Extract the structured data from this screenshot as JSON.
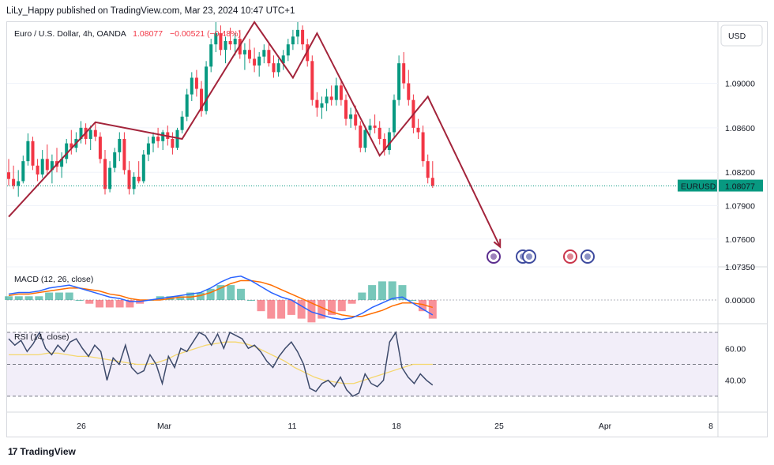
{
  "publisher_line": "LiLy_Happy published on TradingView.com, Mar 23, 2024 10:47 UTC+1",
  "footer_brand": "TradingView",
  "footer_logo": "17",
  "currency_button": "USD",
  "colors": {
    "up": "#089981",
    "down": "#f23645",
    "macd": "#2962ff",
    "signal": "#ff6d00",
    "rsi": "#3d4a6b",
    "rsi_ma": "#f5d76e",
    "trend": "#a3243b"
  },
  "chart_data": [
    {
      "type": "candlestick",
      "symbol_label": "EURUSD",
      "legend": {
        "name": "Euro / U.S. Dollar, 4h, OANDA",
        "last": "1.08077",
        "change": "−0.00521 (−0.48%)"
      },
      "last_price": 1.08077,
      "last_price_label": "1.08077",
      "y_ticks": [
        "1.09000",
        "1.08600",
        "1.08200",
        "1.07900",
        "1.07600",
        "1.07350"
      ],
      "y_tick_values": [
        1.09,
        1.086,
        1.082,
        1.079,
        1.076,
        1.0735
      ],
      "ylim": [
        1.0735,
        1.0955
      ],
      "x_ticks": [
        "26",
        "Mar",
        "11",
        "18",
        "25",
        "Apr",
        "8"
      ],
      "trend_path": [
        [
          0,
          1.078
        ],
        [
          18,
          1.0865
        ],
        [
          36,
          1.085
        ],
        [
          51,
          1.0955
        ],
        [
          59,
          1.0905
        ],
        [
          64,
          1.0945
        ],
        [
          77,
          1.0835
        ],
        [
          87,
          1.0888
        ],
        [
          102,
          1.0753
        ]
      ],
      "ohlc": [
        [
          1.082,
          1.0832,
          1.0808,
          1.0814
        ],
        [
          1.0814,
          1.0826,
          1.0805,
          1.0808
        ],
        [
          1.0808,
          1.0822,
          1.0798,
          1.0812
        ],
        [
          1.0812,
          1.0835,
          1.081,
          1.083
        ],
        [
          1.083,
          1.0855,
          1.0826,
          1.0848
        ],
        [
          1.0848,
          1.0852,
          1.0822,
          1.0826
        ],
        [
          1.0826,
          1.0832,
          1.0812,
          1.0818
        ],
        [
          1.0818,
          1.084,
          1.0815,
          1.0832
        ],
        [
          1.0832,
          1.0845,
          1.0818,
          1.0822
        ],
        [
          1.0822,
          1.0836,
          1.081,
          1.083
        ],
        [
          1.083,
          1.0842,
          1.082,
          1.0825
        ],
        [
          1.0825,
          1.0838,
          1.0815,
          1.0832
        ],
        [
          1.0832,
          1.085,
          1.0828,
          1.0846
        ],
        [
          1.0846,
          1.0858,
          1.0836,
          1.0842
        ],
        [
          1.0842,
          1.0856,
          1.0838,
          1.085
        ],
        [
          1.085,
          1.0866,
          1.0846,
          1.086
        ],
        [
          1.086,
          1.0864,
          1.0845,
          1.085
        ],
        [
          1.085,
          1.0862,
          1.084,
          1.0858
        ],
        [
          1.0858,
          1.0865,
          1.0848,
          1.0852
        ],
        [
          1.0852,
          1.0856,
          1.0828,
          1.0832
        ],
        [
          1.0832,
          1.084,
          1.08,
          1.0805
        ],
        [
          1.0805,
          1.083,
          1.0802,
          1.0824
        ],
        [
          1.0824,
          1.0842,
          1.082,
          1.0838
        ],
        [
          1.0838,
          1.0856,
          1.083,
          1.085
        ],
        [
          1.085,
          1.0856,
          1.0818,
          1.0822
        ],
        [
          1.0822,
          1.083,
          1.08,
          1.0805
        ],
        [
          1.0805,
          1.082,
          1.08,
          1.0816
        ],
        [
          1.0816,
          1.083,
          1.081,
          1.0812
        ],
        [
          1.0812,
          1.084,
          1.081,
          1.0836
        ],
        [
          1.0836,
          1.0852,
          1.083,
          1.0846
        ],
        [
          1.0846,
          1.0856,
          1.0838,
          1.0852
        ],
        [
          1.0852,
          1.086,
          1.0842,
          1.0848
        ],
        [
          1.0848,
          1.0858,
          1.084,
          1.0856
        ],
        [
          1.0856,
          1.0862,
          1.0844,
          1.085
        ],
        [
          1.085,
          1.0856,
          1.0836,
          1.0842
        ],
        [
          1.0842,
          1.086,
          1.084,
          1.0858
        ],
        [
          1.0858,
          1.0875,
          1.0855,
          1.087
        ],
        [
          1.087,
          1.0895,
          1.0866,
          1.089
        ],
        [
          1.089,
          1.091,
          1.0884,
          1.0905
        ],
        [
          1.0905,
          1.0912,
          1.0888,
          1.0895
        ],
        [
          1.0895,
          1.0902,
          1.087,
          1.0875
        ],
        [
          1.0875,
          1.092,
          1.0872,
          1.0915
        ],
        [
          1.0915,
          1.094,
          1.091,
          1.0935
        ],
        [
          1.0935,
          1.0955,
          1.0928,
          1.0945
        ],
        [
          1.0945,
          1.0952,
          1.0925,
          1.093
        ],
        [
          1.093,
          1.0942,
          1.0918,
          1.0938
        ],
        [
          1.0938,
          1.095,
          1.093,
          1.0935
        ],
        [
          1.0935,
          1.0945,
          1.0925,
          1.094
        ],
        [
          1.094,
          1.0948,
          1.0922,
          1.0926
        ],
        [
          1.0926,
          1.0936,
          1.0912,
          1.093
        ],
        [
          1.093,
          1.094,
          1.0918,
          1.0922
        ],
        [
          1.0922,
          1.0932,
          1.091,
          1.0916
        ],
        [
          1.0916,
          1.0928,
          1.0906,
          1.0924
        ],
        [
          1.0924,
          1.0935,
          1.0918,
          1.093
        ],
        [
          1.093,
          1.0936,
          1.0915,
          1.0918
        ],
        [
          1.0918,
          1.0925,
          1.0905,
          1.091
        ],
        [
          1.091,
          1.0922,
          1.0906,
          1.0918
        ],
        [
          1.0918,
          1.093,
          1.0912,
          1.0925
        ],
        [
          1.0925,
          1.094,
          1.092,
          1.0935
        ],
        [
          1.0935,
          1.0948,
          1.093,
          1.0942
        ],
        [
          1.0942,
          1.0955,
          1.0935,
          1.0948
        ],
        [
          1.0948,
          1.0952,
          1.093,
          1.0935
        ],
        [
          1.0935,
          1.094,
          1.0915,
          1.092
        ],
        [
          1.092,
          1.0925,
          1.088,
          1.0885
        ],
        [
          1.0885,
          1.0892,
          1.087,
          1.0878
        ],
        [
          1.0878,
          1.0888,
          1.0868,
          1.0882
        ],
        [
          1.0882,
          1.0895,
          1.0875,
          1.0888
        ],
        [
          1.0888,
          1.0898,
          1.088,
          1.0885
        ],
        [
          1.0885,
          1.0905,
          1.088,
          1.0898
        ],
        [
          1.0898,
          1.0904,
          1.088,
          1.0885
        ],
        [
          1.0885,
          1.089,
          1.0862,
          1.0868
        ],
        [
          1.0868,
          1.0878,
          1.086,
          1.0872
        ],
        [
          1.0872,
          1.088,
          1.0858,
          1.0862
        ],
        [
          1.0862,
          1.0866,
          1.0838,
          1.0842
        ],
        [
          1.0842,
          1.0862,
          1.0838,
          1.0858
        ],
        [
          1.0858,
          1.0868,
          1.0852,
          1.0862
        ],
        [
          1.0862,
          1.0872,
          1.0855,
          1.086
        ],
        [
          1.086,
          1.0866,
          1.0845,
          1.085
        ],
        [
          1.085,
          1.0855,
          1.0835,
          1.084
        ],
        [
          1.084,
          1.086,
          1.0836,
          1.0856
        ],
        [
          1.0856,
          1.089,
          1.0852,
          1.0885
        ],
        [
          1.0885,
          1.0925,
          1.088,
          1.0918
        ],
        [
          1.0918,
          1.0928,
          1.0895,
          1.09
        ],
        [
          1.09,
          1.0912,
          1.088,
          1.0885
        ],
        [
          1.0885,
          1.089,
          1.0855,
          1.086
        ],
        [
          1.086,
          1.0868,
          1.085,
          1.0856
        ],
        [
          1.0856,
          1.0862,
          1.0825,
          1.083
        ],
        [
          1.083,
          1.0836,
          1.081,
          1.0815
        ],
        [
          1.0815,
          1.083,
          1.0806,
          1.0808
        ]
      ]
    },
    {
      "type": "line",
      "title": "MACD (12, 26, close)",
      "y_tick": "0.00000",
      "series": [
        {
          "name": "MACD",
          "values": [
            0.0004,
            0.0005,
            0.0005,
            0.0006,
            0.0008,
            0.0009,
            0.001,
            0.0008,
            0.0006,
            0.0004,
            0.0002,
            0.0001,
            -0.0001,
            -0.0001,
            0.0,
            0.0001,
            0.0002,
            0.0003,
            0.0004,
            0.0005,
            0.0008,
            0.0012,
            0.0015,
            0.0016,
            0.0013,
            0.0009,
            0.0005,
            0.0002,
            0.0,
            -0.0004,
            -0.0008,
            -0.001,
            -0.0012,
            -0.0013,
            -0.0012,
            -0.0009,
            -0.0005,
            -0.0002,
            0.0001,
            0.0002,
            -0.0002,
            -0.0006,
            -0.001
          ]
        },
        {
          "name": "Signal",
          "values": [
            0.0003,
            0.0004,
            0.0004,
            0.0005,
            0.0006,
            0.0007,
            0.0008,
            0.0008,
            0.0007,
            0.0006,
            0.0004,
            0.0003,
            0.0001,
            0.0,
            0.0,
            0.0,
            0.0001,
            0.0002,
            0.0002,
            0.0003,
            0.0005,
            0.0008,
            0.0011,
            0.0013,
            0.0013,
            0.0012,
            0.001,
            0.0007,
            0.0004,
            0.0001,
            -0.0002,
            -0.0005,
            -0.0008,
            -0.001,
            -0.0011,
            -0.0011,
            -0.0009,
            -0.0007,
            -0.0004,
            -0.0002,
            -0.0002,
            -0.0003,
            -0.0005
          ]
        }
      ]
    },
    {
      "type": "line",
      "title": "RSI (14, close)",
      "y_ticks": [
        "60.00",
        "40.00"
      ],
      "y_tick_values": [
        60,
        40
      ],
      "bands": [
        70,
        50,
        30
      ],
      "series": [
        {
          "name": "RSI",
          "values": [
            66,
            62,
            65,
            58,
            63,
            70,
            60,
            56,
            62,
            58,
            64,
            66,
            60,
            55,
            62,
            58,
            40,
            54,
            50,
            62,
            48,
            44,
            46,
            56,
            50,
            38,
            55,
            48,
            60,
            58,
            64,
            70,
            68,
            62,
            69,
            60,
            70,
            68,
            66,
            60,
            62,
            58,
            52,
            48,
            55,
            60,
            64,
            58,
            50,
            35,
            33,
            38,
            40,
            36,
            42,
            34,
            30,
            32,
            44,
            38,
            36,
            40,
            64,
            70,
            48,
            42,
            38,
            44,
            40,
            37
          ]
        },
        {
          "name": "RSI MA",
          "values": [
            56,
            56,
            56,
            56,
            57,
            57,
            56,
            55,
            55,
            54,
            53,
            52,
            51,
            50,
            50,
            51,
            53,
            56,
            58,
            60,
            62,
            63,
            64,
            64,
            63,
            61,
            58,
            55,
            52,
            48,
            45,
            42,
            40,
            39,
            38,
            38,
            40,
            42,
            44,
            46,
            48,
            50,
            50,
            50
          ]
        }
      ]
    }
  ]
}
